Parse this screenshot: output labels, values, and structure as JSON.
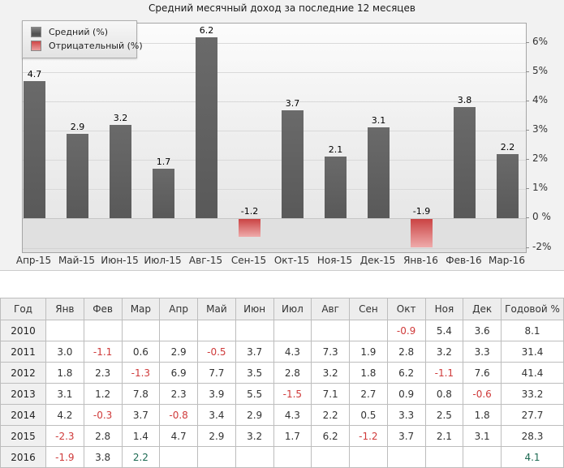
{
  "chart": {
    "title": "Средний месячный доход за последние 12 месяцев",
    "legend": [
      {
        "label": "Средний (%)",
        "color": "#5e5e5e"
      },
      {
        "label": "Отрицательный (%)",
        "color": "#ca4343"
      }
    ]
  },
  "chart_data": {
    "type": "bar",
    "title": "Средний месячный доход за последние 12 месяцев",
    "categories": [
      "Апр-15",
      "Май-15",
      "Июн-15",
      "Июл-15",
      "Авг-15",
      "Сен-15",
      "Окт-15",
      "Ноя-15",
      "Дек-15",
      "Янв-16",
      "Фев-16",
      "Мар-16"
    ],
    "values": [
      4.7,
      2.9,
      3.2,
      1.7,
      6.2,
      -1.2,
      3.7,
      2.1,
      3.1,
      -1.9,
      3.8,
      2.2
    ],
    "xlabel": "",
    "ylabel": "",
    "ylim": [
      -2.3,
      6.7
    ],
    "yticks": [
      {
        "value": 6,
        "label": "6%"
      },
      {
        "value": 5,
        "label": "5%"
      },
      {
        "value": 4,
        "label": "4%"
      },
      {
        "value": 3,
        "label": "3%"
      },
      {
        "value": 2,
        "label": "2%"
      },
      {
        "value": 1,
        "label": "1%"
      },
      {
        "value": 0,
        "label": "0 %"
      },
      {
        "value": -2,
        "label": "-2%"
      }
    ],
    "legend": [
      "Средний (%)",
      "Отрицательный (%)"
    ],
    "legend_position": "top-left",
    "grid": true,
    "bar_color": "#5e5e5e",
    "negative_bar_color": "#ca4343"
  },
  "table": {
    "headers": [
      "Год",
      "Янв",
      "Фев",
      "Мар",
      "Апр",
      "Май",
      "Июн",
      "Июл",
      "Авг",
      "Сен",
      "Окт",
      "Ноя",
      "Дек",
      "Годовой %"
    ],
    "rows": [
      {
        "year": "2010",
        "months": [
          "",
          "",
          "",
          "",
          "",
          "",
          "",
          "",
          "",
          "-0.9",
          "5.4",
          "3.6"
        ],
        "annual": "8.1",
        "green_months": [],
        "annual_green": false
      },
      {
        "year": "2011",
        "months": [
          "3.0",
          "-1.1",
          "0.6",
          "2.9",
          "-0.5",
          "3.7",
          "4.3",
          "7.3",
          "1.9",
          "2.8",
          "3.2",
          "3.3"
        ],
        "annual": "31.4",
        "green_months": [],
        "annual_green": false
      },
      {
        "year": "2012",
        "months": [
          "1.8",
          "2.3",
          "-1.3",
          "6.9",
          "7.7",
          "3.5",
          "2.8",
          "3.2",
          "1.8",
          "6.2",
          "-1.1",
          "7.6"
        ],
        "annual": "41.4",
        "green_months": [],
        "annual_green": false
      },
      {
        "year": "2013",
        "months": [
          "3.1",
          "1.2",
          "7.8",
          "2.3",
          "3.9",
          "5.5",
          "-1.5",
          "7.1",
          "2.7",
          "0.9",
          "0.8",
          "-0.6"
        ],
        "annual": "33.2",
        "green_months": [],
        "annual_green": false
      },
      {
        "year": "2014",
        "months": [
          "4.2",
          "-0.3",
          "3.7",
          "-0.8",
          "3.4",
          "2.9",
          "4.3",
          "2.2",
          "0.5",
          "3.3",
          "2.5",
          "1.8"
        ],
        "annual": "27.7",
        "green_months": [],
        "annual_green": false
      },
      {
        "year": "2015",
        "months": [
          "-2.3",
          "2.8",
          "1.4",
          "4.7",
          "2.9",
          "3.2",
          "1.7",
          "6.2",
          "-1.2",
          "3.7",
          "2.1",
          "3.1"
        ],
        "annual": "28.3",
        "green_months": [],
        "annual_green": false
      },
      {
        "year": "2016",
        "months": [
          "-1.9",
          "3.8",
          "2.2",
          "",
          "",
          "",
          "",
          "",
          "",
          "",
          "",
          ""
        ],
        "annual": "4.1",
        "green_months": [
          2
        ],
        "annual_green": true
      }
    ]
  }
}
